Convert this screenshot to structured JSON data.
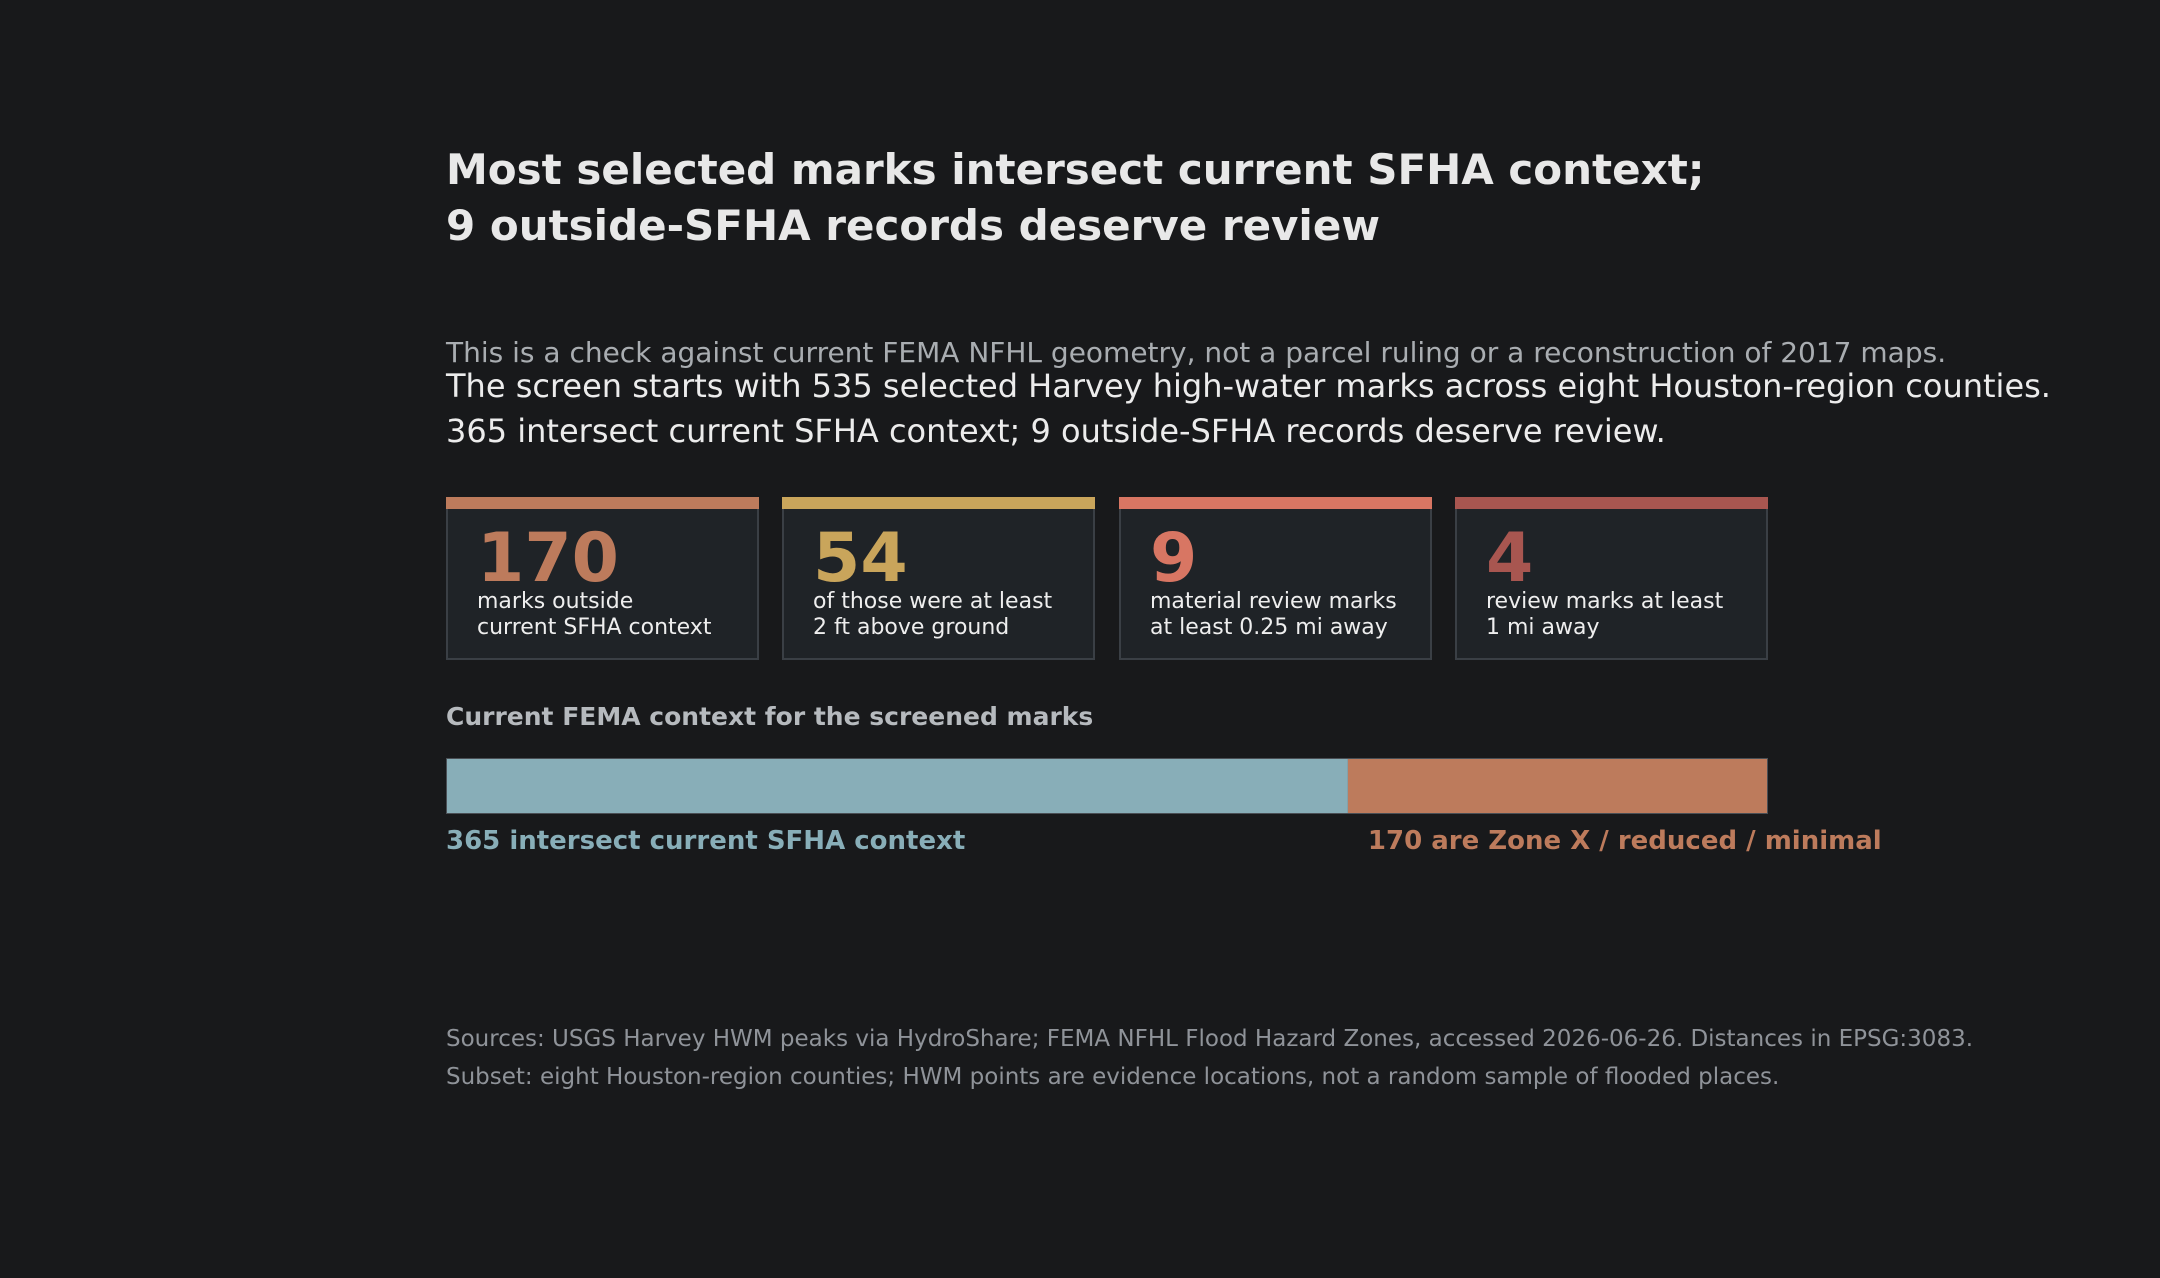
{
  "title": {
    "line1": "Most selected marks intersect current SFHA context;",
    "line2": "9 outside-SFHA records deserve review"
  },
  "subtitle": "This is a check against current FEMA NFHL geometry, not a parcel ruling or a reconstruction of 2017 maps.",
  "summary": {
    "line1": "The screen starts with 535 selected Harvey high-water marks across eight Houston-region counties.",
    "line2": "365 intersect current SFHA context; 9 outside-SFHA records deserve review."
  },
  "colors": {
    "card1": "#bd7b5c",
    "card2": "#c9a55b",
    "card3": "#d87663",
    "card4": "#a85650",
    "sfha": "#88aeb8",
    "zonex": "#bd7b5c"
  },
  "cards": [
    {
      "value": "170",
      "label_line1": "marks outside",
      "label_line2": "current SFHA context"
    },
    {
      "value": "54",
      "label_line1": "of those were at least",
      "label_line2": "2 ft above ground"
    },
    {
      "value": "9",
      "label_line1": "material review marks",
      "label_line2": "at least 0.25 mi away"
    },
    {
      "value": "4",
      "label_line1": "review marks at least",
      "label_line2": "1 mi away"
    }
  ],
  "chart_data": {
    "type": "bar",
    "orientation": "horizontal-stacked",
    "title": "Current FEMA context for the screened marks",
    "series": [
      {
        "name": "365 intersect current SFHA context",
        "value": 365
      },
      {
        "name": "170 are Zone X / reduced / minimal",
        "value": 170
      }
    ],
    "total": 535,
    "grid": false
  },
  "footer": {
    "line1": "Sources: USGS Harvey HWM peaks via HydroShare; FEMA NFHL Flood Hazard Zones, accessed 2026-06-26. Distances in EPSG:3083.",
    "line2": "Subset: eight Houston-region counties; HWM points are evidence locations, not a random sample of flooded places."
  }
}
